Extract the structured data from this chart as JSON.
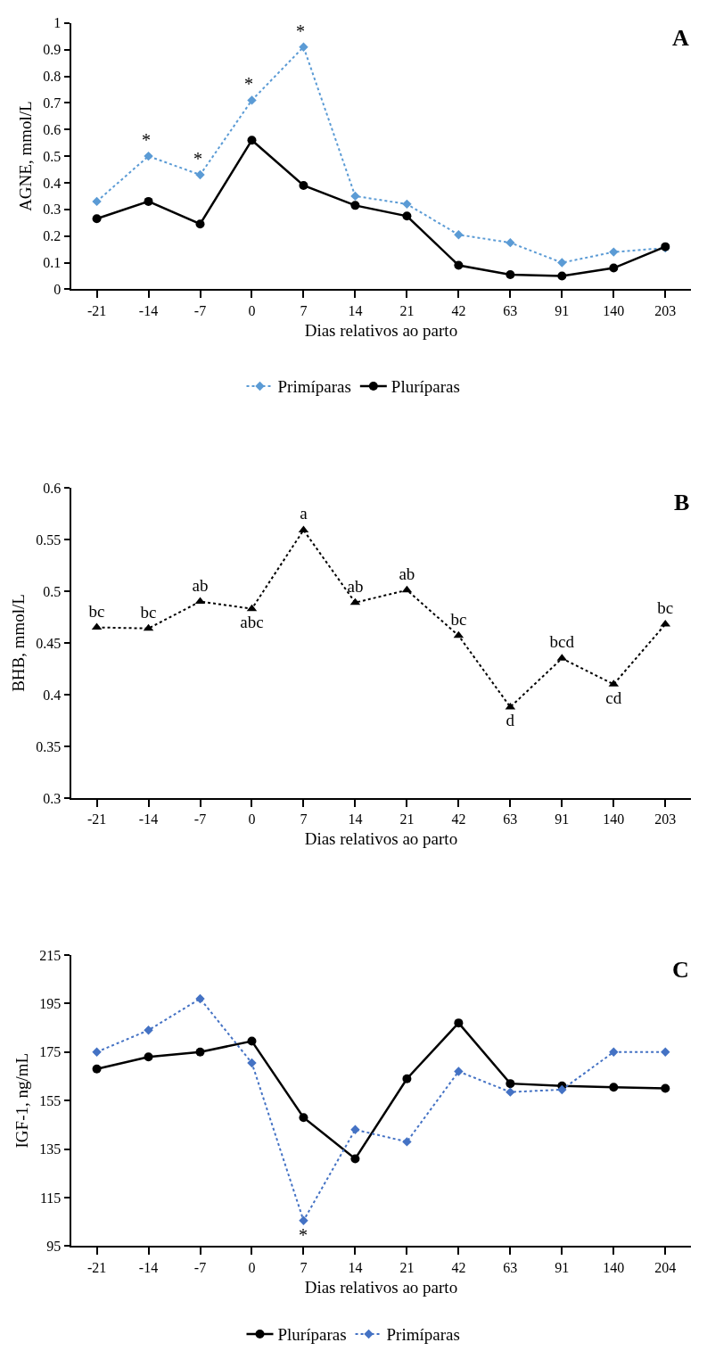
{
  "chart_data": [
    {
      "type": "line",
      "title": "A",
      "xlabel": "Dias relativos ao parto",
      "ylabel": "AGNE, mmol/L",
      "categories": [
        "-21",
        "-14",
        "-7",
        "0",
        "7",
        "14",
        "21",
        "42",
        "63",
        "91",
        "140",
        "203"
      ],
      "series": [
        {
          "name": "Primíparas",
          "color": "#5b9bd5",
          "marker": "diamond",
          "line_style": "dotted",
          "values": [
            0.33,
            0.5,
            0.43,
            0.71,
            0.91,
            0.35,
            0.32,
            0.205,
            0.175,
            0.1,
            0.14,
            0.155
          ]
        },
        {
          "name": "Pluríparas",
          "color": "#000000",
          "marker": "circle",
          "line_style": "solid",
          "values": [
            0.265,
            0.33,
            0.245,
            0.56,
            0.39,
            0.315,
            0.275,
            0.09,
            0.055,
            0.05,
            0.08,
            0.16
          ]
        }
      ],
      "ylim": [
        0,
        1
      ],
      "yticks": [
        0,
        {
          "value": 0.1,
          "label": "0.1"
        },
        {
          "value": 0.2,
          "label": "0.2"
        },
        {
          "value": 0.3,
          "label": "0.3"
        },
        {
          "value": 0.4,
          "label": "0.4"
        },
        {
          "value": 0.5,
          "label": "0.5"
        },
        {
          "value": 0.6,
          "label": "0.6"
        },
        {
          "value": 0.7,
          "label": "0.7"
        },
        {
          "value": 0.8,
          "label": "0.8"
        },
        {
          "value": 0.9,
          "label": "0.9"
        },
        1
      ],
      "annotations": [
        {
          "text": "*",
          "x": "-14",
          "y": 0.5
        },
        {
          "text": "*",
          "x": "-7",
          "y": 0.43
        },
        {
          "text": "*",
          "x": "0",
          "y": 0.71
        },
        {
          "text": "*",
          "x": "7",
          "y": 0.91
        }
      ],
      "legend": "bottom"
    },
    {
      "type": "line",
      "title": "B",
      "xlabel": "Dias relativos ao parto",
      "ylabel": "BHB, mmol/L",
      "categories": [
        "-21",
        "-14",
        "-7",
        "0",
        "7",
        "14",
        "21",
        "42",
        "63",
        "91",
        "140",
        "203"
      ],
      "series": [
        {
          "color": "#000000",
          "marker": "triangle",
          "line_style": "dotted",
          "values": [
            0.465,
            0.464,
            0.49,
            0.483,
            0.559,
            0.489,
            0.501,
            0.457,
            0.388,
            0.435,
            0.41,
            0.468
          ],
          "value_labels": [
            "bc",
            "bc",
            "ab",
            "abc",
            "a",
            "ab",
            "ab",
            "bc",
            "d",
            "bcd",
            "cd",
            "bc"
          ]
        }
      ],
      "ylim": [
        0.3,
        0.6
      ],
      "yticks": [
        {
          "value": 0.3,
          "label": "0.3"
        },
        {
          "value": 0.35,
          "label": "0.35"
        },
        {
          "value": 0.4,
          "label": "0.4"
        },
        {
          "value": 0.45,
          "label": "0.45"
        },
        {
          "value": 0.5,
          "label": "0.5"
        },
        {
          "value": 0.55,
          "label": "0.55"
        },
        {
          "value": 0.6,
          "label": "0.6"
        }
      ],
      "legend": false
    },
    {
      "type": "line",
      "title": "C",
      "xlabel": "Dias relativos ao parto",
      "ylabel": "IGF-1, ng/mL",
      "categories": [
        "-21",
        "-14",
        "-7",
        "0",
        "7",
        "14",
        "21",
        "42",
        "63",
        "91",
        "140",
        "204"
      ],
      "series": [
        {
          "name": "Pluríparas",
          "color": "#000000",
          "marker": "circle",
          "line_style": "solid",
          "values": [
            168,
            173,
            175,
            179.5,
            148,
            131,
            164,
            187,
            162,
            161,
            160.5,
            160
          ]
        },
        {
          "name": "Primíparas",
          "color": "#4472c4",
          "marker": "diamond",
          "line_style": "dotted",
          "values": [
            175,
            184,
            197,
            170.5,
            105.5,
            143,
            138,
            167,
            158.5,
            159.5,
            175,
            175
          ]
        }
      ],
      "ylim": [
        95,
        215
      ],
      "yticks": [
        95,
        115,
        135,
        155,
        175,
        195,
        215
      ],
      "annotations": [
        {
          "text": "*",
          "x": "7",
          "y": 105.5
        }
      ],
      "legend": "bottom"
    }
  ]
}
